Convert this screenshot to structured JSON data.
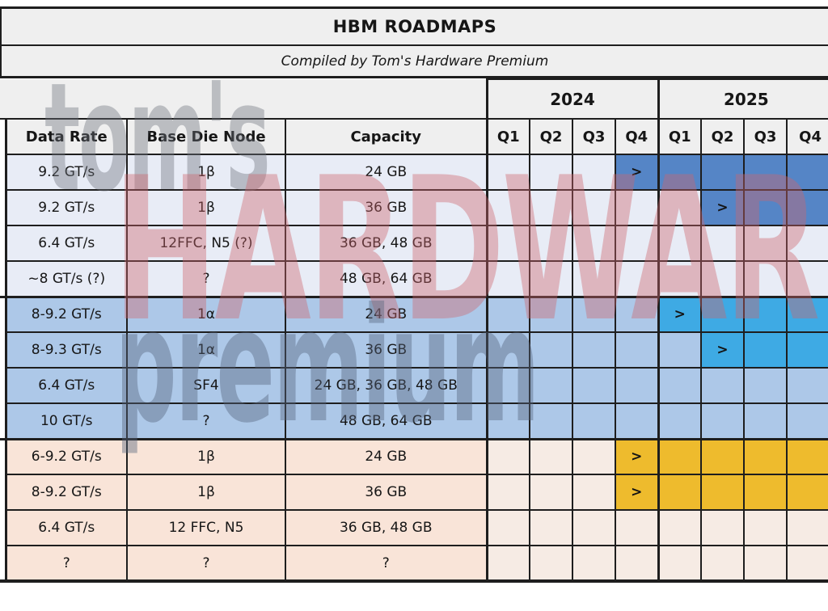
{
  "title": "HBM ROADMAPS",
  "subtitle": "Compiled by Tom's Hardware Premium",
  "watermark": {
    "toms": "tom's",
    "hardware": "HARDWARE",
    "premium": "premium"
  },
  "columns": {
    "data_rate": "Data Rate",
    "base_die_node": "Base Die Node",
    "capacity": "Capacity"
  },
  "years": [
    {
      "label": "2024",
      "quarters": [
        "Q1",
        "Q2",
        "Q3",
        "Q4"
      ]
    },
    {
      "label": "2025",
      "quarters": [
        "Q1",
        "Q2",
        "Q3",
        "Q4"
      ]
    }
  ],
  "marker": ">",
  "colors": {
    "header_bg": "#EFEFEF",
    "border": "#1E1E1E",
    "group_blue_light_bg": "#E8ECF6",
    "group_blue_mid_bg": "#ADC8E8",
    "group_peach_bg": "#F9E4D8",
    "group_peach_quarter_bg": "#F6EBE4",
    "highlight_dark_blue": "#5585C6",
    "highlight_bright_blue": "#3EAAE4",
    "highlight_gold": "#EEBB2D"
  },
  "chart_data": {
    "type": "table",
    "title": "HBM ROADMAPS",
    "subtitle": "Compiled by Tom's Hardware Premium",
    "columns": [
      "Data Rate",
      "Base Die Node",
      "Capacity",
      "2024 Q1",
      "2024 Q2",
      "2024 Q3",
      "2024 Q4",
      "2025 Q1",
      "2025 Q2",
      "2025 Q3",
      "2025 Q4"
    ],
    "rows": [
      {
        "data_rate": "9.2 GT/s",
        "base_die_node": "1β",
        "capacity": "24 GB",
        "group": "blue_light",
        "highlight": "dark_blue",
        "start_quarter": "2024 Q4",
        "timeline": [
          "",
          "",
          "",
          "start",
          "fill",
          "fill",
          "fill",
          "fill"
        ]
      },
      {
        "data_rate": "9.2 GT/s",
        "base_die_node": "1β",
        "capacity": "36 GB",
        "group": "blue_light",
        "highlight": "dark_blue",
        "start_quarter": "2025 Q2",
        "timeline": [
          "",
          "",
          "",
          "",
          "",
          "start",
          "fill",
          "fill"
        ]
      },
      {
        "data_rate": "6.4 GT/s",
        "base_die_node": "12FFC, N5 (?)",
        "capacity": "36 GB, 48 GB",
        "group": "blue_light",
        "highlight": "",
        "start_quarter": "",
        "timeline": [
          "",
          "",
          "",
          "",
          "",
          "",
          "",
          ""
        ]
      },
      {
        "data_rate": "~8 GT/s (?)",
        "base_die_node": "?",
        "capacity": "48 GB, 64 GB",
        "group": "blue_light",
        "highlight": "",
        "start_quarter": "",
        "timeline": [
          "",
          "",
          "",
          "",
          "",
          "",
          "",
          ""
        ]
      },
      {
        "data_rate": "8-9.2 GT/s",
        "base_die_node": "1α",
        "capacity": "24 GB",
        "group": "blue_mid",
        "highlight": "bright_blue",
        "start_quarter": "2025 Q1",
        "timeline": [
          "",
          "",
          "",
          "",
          "start",
          "fill",
          "fill",
          "fill"
        ]
      },
      {
        "data_rate": "8-9.3 GT/s",
        "base_die_node": "1α",
        "capacity": "36 GB",
        "group": "blue_mid",
        "highlight": "bright_blue",
        "start_quarter": "2025 Q2",
        "timeline": [
          "",
          "",
          "",
          "",
          "",
          "start",
          "fill",
          "fill"
        ]
      },
      {
        "data_rate": "6.4 GT/s",
        "base_die_node": "SF4",
        "capacity": "24 GB, 36 GB, 48 GB",
        "group": "blue_mid",
        "highlight": "",
        "start_quarter": "",
        "timeline": [
          "",
          "",
          "",
          "",
          "",
          "",
          "",
          ""
        ]
      },
      {
        "data_rate": "10 GT/s",
        "base_die_node": "?",
        "capacity": "48 GB, 64 GB",
        "group": "blue_mid",
        "highlight": "",
        "start_quarter": "",
        "timeline": [
          "",
          "",
          "",
          "",
          "",
          "",
          "",
          ""
        ]
      },
      {
        "data_rate": "6-9.2 GT/s",
        "base_die_node": "1β",
        "capacity": "24 GB",
        "group": "peach",
        "highlight": "gold",
        "start_quarter": "2024 Q4",
        "timeline": [
          "",
          "",
          "",
          "start",
          "fill",
          "fill",
          "fill",
          "fill"
        ]
      },
      {
        "data_rate": "8-9.2 GT/s",
        "base_die_node": "1β",
        "capacity": "36 GB",
        "group": "peach",
        "highlight": "gold",
        "start_quarter": "2024 Q4",
        "timeline": [
          "",
          "",
          "",
          "start",
          "fill",
          "fill",
          "fill",
          "fill"
        ]
      },
      {
        "data_rate": "6.4 GT/s",
        "base_die_node": "12 FFC, N5",
        "capacity": "36 GB, 48 GB",
        "group": "peach",
        "highlight": "",
        "start_quarter": "",
        "timeline": [
          "",
          "",
          "",
          "",
          "",
          "",
          "",
          ""
        ]
      },
      {
        "data_rate": "?",
        "base_die_node": "?",
        "capacity": "?",
        "group": "peach",
        "highlight": "",
        "start_quarter": "",
        "timeline": [
          "",
          "",
          "",
          "",
          "",
          "",
          "",
          ""
        ]
      }
    ]
  }
}
